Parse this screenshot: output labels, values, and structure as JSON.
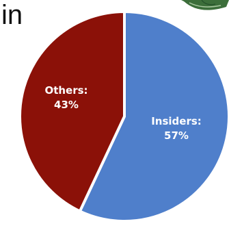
{
  "title_fragment": "in",
  "chart_data": {
    "type": "pie",
    "slices": [
      {
        "label": "Insiders",
        "value": 57,
        "display": "57%",
        "color": "#4f7fcb"
      },
      {
        "label": "Others",
        "value": 43,
        "display": "43%",
        "color": "#8b1108"
      }
    ]
  }
}
